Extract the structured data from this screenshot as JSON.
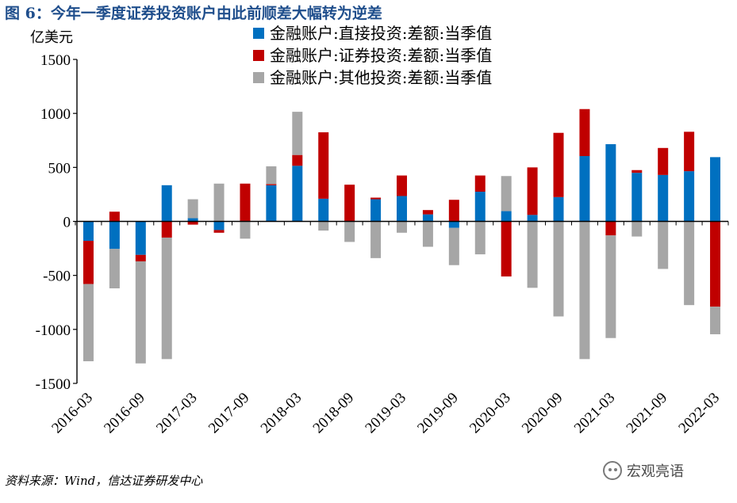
{
  "figure": {
    "title": "图 6：今年一季度证券投资账户由此前顺差大幅转为逆差",
    "source": "资料来源：Wind，信达证券研发中心",
    "watermark": "宏观亮语",
    "watermark_icon": "wechat-icon"
  },
  "chart_data": {
    "type": "bar",
    "stacked": true,
    "ylabel": "亿美元",
    "ylim": [
      -1500,
      1500
    ],
    "yticks": [
      1500,
      1000,
      500,
      0,
      -500,
      -1000,
      -1500
    ],
    "categories": [
      "2016-03",
      "2016-06",
      "2016-09",
      "2016-12",
      "2017-03",
      "2017-06",
      "2017-09",
      "2017-12",
      "2018-03",
      "2018-06",
      "2018-09",
      "2018-12",
      "2019-03",
      "2019-06",
      "2019-09",
      "2019-12",
      "2020-03",
      "2020-06",
      "2020-09",
      "2020-12",
      "2021-03",
      "2021-06",
      "2021-09",
      "2021-12",
      "2022-03"
    ],
    "xtick_labels": [
      "2016-03",
      "2016-09",
      "2017-03",
      "2017-09",
      "2018-03",
      "2018-09",
      "2019-03",
      "2019-09",
      "2020-03",
      "2020-09",
      "2021-03",
      "2021-09",
      "2022-03"
    ],
    "legend_position": "top",
    "grid": false,
    "series": [
      {
        "name": "金融账户:直接投资:差额:当季值",
        "color": "#0070c0",
        "values": [
          -180,
          -255,
          -310,
          335,
          30,
          -80,
          0,
          335,
          515,
          210,
          0,
          205,
          235,
          65,
          -60,
          275,
          95,
          60,
          225,
          605,
          715,
          450,
          430,
          465,
          595
        ]
      },
      {
        "name": "金融账户:证券投资:差额:当季值",
        "color": "#c00000",
        "values": [
          -400,
          90,
          -60,
          -150,
          -30,
          -25,
          350,
          10,
          100,
          615,
          340,
          15,
          190,
          40,
          200,
          150,
          -510,
          440,
          595,
          435,
          -130,
          25,
          250,
          365,
          -790
        ]
      },
      {
        "name": "金融账户:其他投资:差额:当季值",
        "color": "#a6a6a6",
        "values": [
          -715,
          -365,
          -945,
          -1125,
          175,
          350,
          -160,
          165,
          400,
          -85,
          -190,
          -340,
          -105,
          -235,
          -345,
          -305,
          325,
          -615,
          -880,
          -1275,
          -950,
          -140,
          -440,
          -775,
          -255
        ]
      }
    ]
  }
}
